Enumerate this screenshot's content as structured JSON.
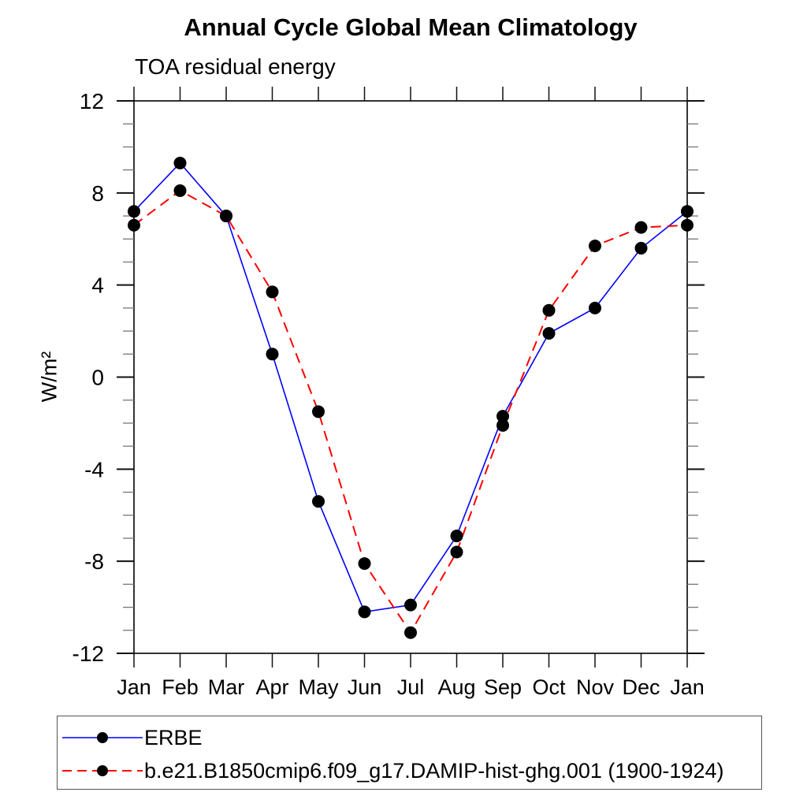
{
  "chart_data": {
    "type": "line",
    "title": "Annual Cycle Global Mean Climatology",
    "subtitle": "TOA residual energy",
    "ylabel": "W/m²",
    "xlabel": "",
    "categories": [
      "Jan",
      "Feb",
      "Mar",
      "Apr",
      "May",
      "Jun",
      "Jul",
      "Aug",
      "Sep",
      "Oct",
      "Nov",
      "Dec",
      "Jan"
    ],
    "ylim": [
      -12,
      12
    ],
    "ytick_major": [
      -12,
      -8,
      -4,
      0,
      4,
      8,
      12
    ],
    "ytick_minor_step": 1,
    "grid": false,
    "legend_position": "bottom-left-box",
    "axis_color": "#000000",
    "minor_tick_color": "#777777",
    "series": [
      {
        "name": "ERBE",
        "color": "#0000ff",
        "style": "solid",
        "marker": "circle",
        "marker_color": "#000000",
        "values": [
          7.2,
          9.3,
          7.0,
          1.0,
          -5.4,
          -10.2,
          -9.9,
          -6.9,
          -1.7,
          1.9,
          3.0,
          5.6,
          7.2
        ]
      },
      {
        "name": "b.e21.B1850cmip6.f09_g17.DAMIP-hist-ghg.001 (1900-1924)",
        "color": "#ff0000",
        "style": "dashed",
        "marker": "circle",
        "marker_color": "#000000",
        "values": [
          6.6,
          8.1,
          7.0,
          3.7,
          -1.5,
          -8.1,
          -11.1,
          -7.6,
          -2.1,
          2.9,
          5.7,
          6.5,
          6.6
        ]
      }
    ]
  }
}
